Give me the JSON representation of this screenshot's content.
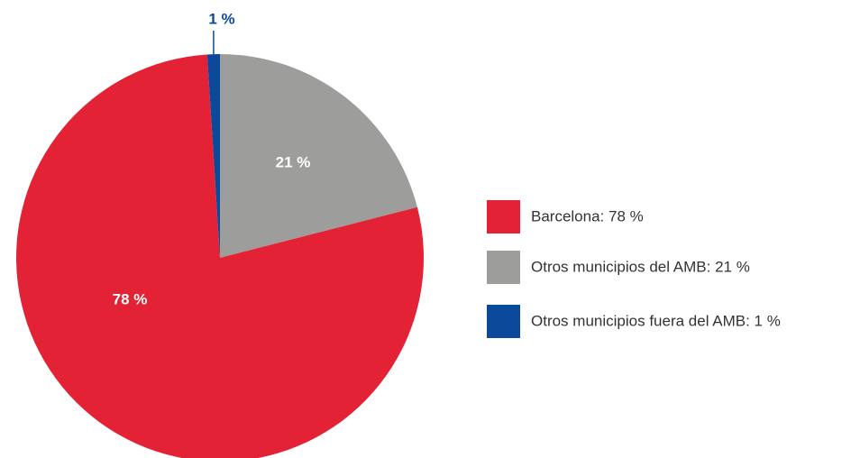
{
  "chart_data": {
    "type": "pie",
    "categories": [
      "Otros municipios del AMB: 21 %",
      "Barcelona: 78 %",
      "Otros municipios fuera del AMB: 1 %"
    ],
    "values": [
      21,
      78,
      1
    ],
    "value_labels": [
      "21 %",
      "78 %",
      "1 %"
    ],
    "colors": [
      "#9d9d9c",
      "#e32236",
      "#0b4a9a"
    ]
  }
}
